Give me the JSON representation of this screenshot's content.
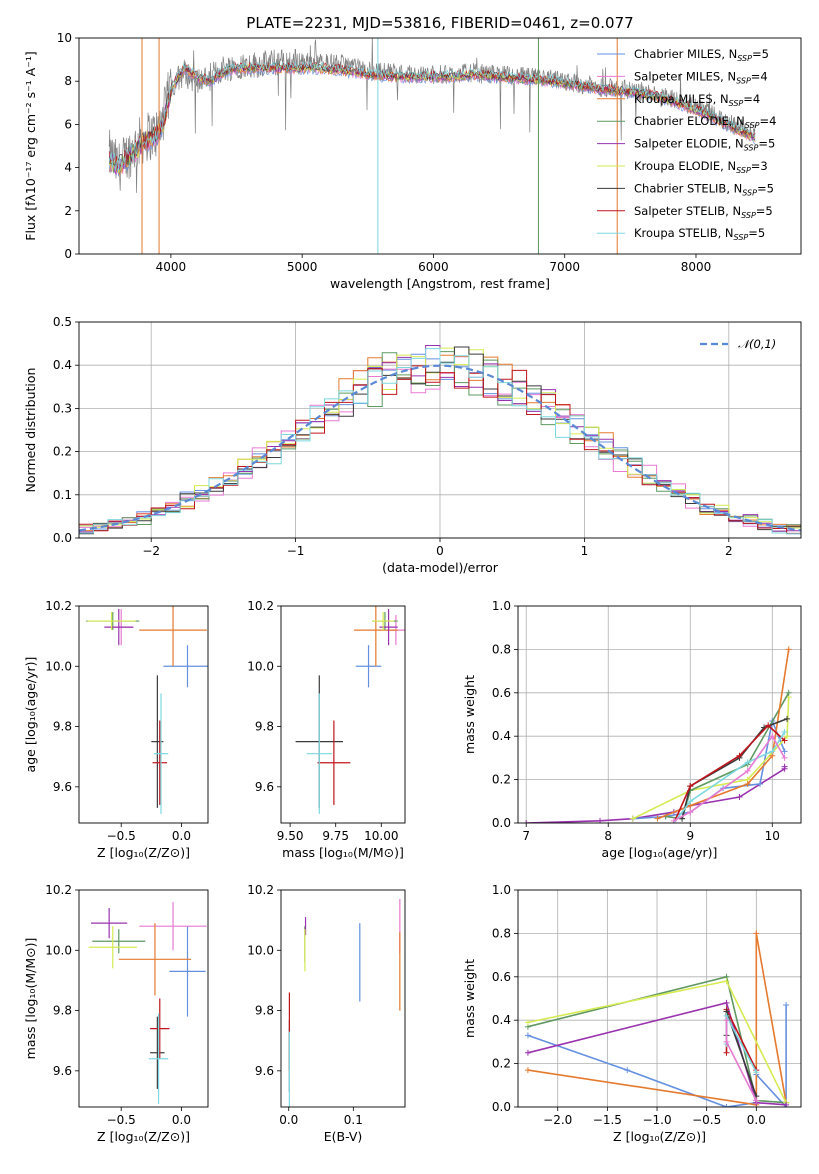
{
  "colors": {
    "chabrier_miles": "#6590e0",
    "salpeter_miles": "#e87ad2",
    "kroupa_miles": "#e57a2e",
    "chabrier_elodie": "#5f9860",
    "salpeter_elodie": "#9a32b0",
    "kroupa_elodie": "#d6ea52",
    "chabrier_stelib": "#3a3a3a",
    "salpeter_stelib": "#c0141c",
    "kroupa_stelib": "#7dd8e0"
  },
  "series_labels": [
    {
      "key": "chabrier_miles",
      "prefix": "Chabrier MILES, N",
      "sub": "SSP",
      "suffix": "=5"
    },
    {
      "key": "salpeter_miles",
      "prefix": "Salpeter MILES, N",
      "sub": "SSP",
      "suffix": "=4"
    },
    {
      "key": "kroupa_miles",
      "prefix": "Kroupa MILES, N",
      "sub": "SSP",
      "suffix": "=4"
    },
    {
      "key": "chabrier_elodie",
      "prefix": "Chabrier ELODIE, N",
      "sub": "SSP",
      "suffix": "=4"
    },
    {
      "key": "salpeter_elodie",
      "prefix": "Salpeter ELODIE, N",
      "sub": "SSP",
      "suffix": "=5"
    },
    {
      "key": "kroupa_elodie",
      "prefix": "Kroupa ELODIE, N",
      "sub": "SSP",
      "suffix": "=3"
    },
    {
      "key": "chabrier_stelib",
      "prefix": "Chabrier STELIB, N",
      "sub": "SSP",
      "suffix": "=5"
    },
    {
      "key": "salpeter_stelib",
      "prefix": "Salpeter STELIB, N",
      "sub": "SSP",
      "suffix": "=5"
    },
    {
      "key": "kroupa_stelib",
      "prefix": "Kroupa STELIB, N",
      "sub": "SSP",
      "suffix": "=5"
    }
  ],
  "chart_data": [
    {
      "id": "spectrum",
      "type": "line",
      "title": "PLATE=2231, MJD=53816, FIBERID=0461, z=0.077",
      "xlabel": "wavelength [Angstrom, rest frame]",
      "ylabel": "Flux [fλ10⁻¹⁷ erg cm⁻² s⁻¹ A⁻¹]",
      "xlim": [
        3300,
        8800
      ],
      "ylim": [
        0,
        10
      ],
      "xticks": [
        4000,
        5000,
        6000,
        7000,
        8000
      ],
      "yticks": [
        0,
        2,
        4,
        6,
        8,
        10
      ],
      "data_series": {
        "name": "data",
        "color": "#808080",
        "x": [
          3530,
          3600,
          3700,
          3800,
          3900,
          3950,
          4000,
          4100,
          4200,
          4300,
          4400,
          4500,
          4700,
          4900,
          5100,
          5300,
          5500,
          5700,
          5900,
          6100,
          6300,
          6500,
          6700,
          6900,
          7100,
          7300,
          7500,
          7700,
          7900,
          8100,
          8300,
          8450
        ],
        "y": [
          4.6,
          4.0,
          4.8,
          5.4,
          5.6,
          6.5,
          7.8,
          8.4,
          8.0,
          8.2,
          8.6,
          8.7,
          8.8,
          8.9,
          8.9,
          8.8,
          8.5,
          8.4,
          8.3,
          8.3,
          8.4,
          8.3,
          8.2,
          8.1,
          7.9,
          7.7,
          7.6,
          7.4,
          7.0,
          6.5,
          5.9,
          5.6
        ]
      },
      "model_series": {
        "name": "model",
        "x": [
          3530,
          3600,
          3700,
          3800,
          3900,
          3950,
          4000,
          4100,
          4200,
          4300,
          4400,
          4500,
          4700,
          4900,
          5100,
          5300,
          5500,
          5700,
          5900,
          6100,
          6300,
          6500,
          6700,
          6900,
          7100,
          7300,
          7500,
          7700,
          7900,
          8100,
          8300,
          8450
        ],
        "y": [
          4.3,
          4.0,
          4.6,
          5.2,
          5.5,
          6.2,
          7.6,
          8.6,
          8.2,
          8.0,
          8.4,
          8.6,
          8.6,
          8.6,
          8.6,
          8.5,
          8.3,
          8.2,
          8.2,
          8.2,
          8.3,
          8.2,
          8.1,
          8.0,
          7.8,
          7.6,
          7.5,
          7.3,
          6.9,
          6.4,
          5.8,
          5.4
        ]
      },
      "spikes": [
        {
          "x": 5577,
          "color": "#7dd8e0"
        },
        {
          "x": 6800,
          "color": "#5f9860"
        },
        {
          "x": 7400,
          "color": "#e57a2e"
        },
        {
          "x": 3780,
          "color": "#e57a2e"
        },
        {
          "x": 3910,
          "color": "#e57a2e"
        }
      ],
      "legend": "right"
    },
    {
      "id": "residuals",
      "type": "histogram",
      "xlabel": "(data-model)/error",
      "ylabel": "Normed distribution",
      "xlim": [
        -2.5,
        2.5
      ],
      "ylim": [
        0,
        0.5
      ],
      "xticks": [
        -2,
        -1,
        0,
        1,
        2
      ],
      "yticks": [
        0.0,
        0.1,
        0.2,
        0.3,
        0.4,
        0.5
      ],
      "bin_width": 0.1,
      "gaussian_label": "𝒩(0,1)",
      "gaussian_color": "#5a8ad6",
      "legend": "top-right",
      "grid": true
    },
    {
      "id": "age_vs_Z",
      "type": "scatter",
      "xlabel": "Z [log₁₀(Z/Z⊙)]",
      "ylabel": "age  [log₁₀(age/yr)]",
      "xlim": [
        -0.85,
        0.22
      ],
      "ylim": [
        9.48,
        10.2
      ],
      "xticks": [
        -0.5,
        0.0
      ],
      "yticks": [
        9.6,
        9.8,
        10.0,
        10.2
      ],
      "points": [
        {
          "key": "chabrier_miles",
          "x": 0.05,
          "y": 10.0,
          "xerr": 0.2,
          "yerr": 0.07
        },
        {
          "key": "salpeter_miles",
          "x": -0.5,
          "y": 10.13,
          "xerr": 0.1,
          "yerr": 0.06
        },
        {
          "key": "kroupa_miles",
          "x": -0.07,
          "y": 10.12,
          "xerr": 0.28,
          "yerr": 0.12
        },
        {
          "key": "chabrier_elodie",
          "x": -0.57,
          "y": 10.15,
          "xerr": 0.22,
          "yerr": 0.03
        },
        {
          "key": "salpeter_elodie",
          "x": -0.52,
          "y": 10.13,
          "xerr": 0.12,
          "yerr": 0.06
        },
        {
          "key": "kroupa_elodie",
          "x": -0.58,
          "y": 10.15,
          "xerr": 0.2,
          "yerr": 0.03
        },
        {
          "key": "chabrier_stelib",
          "x": -0.2,
          "y": 9.75,
          "xerr": 0.05,
          "yerr": 0.22
        },
        {
          "key": "salpeter_stelib",
          "x": -0.18,
          "y": 9.68,
          "xerr": 0.06,
          "yerr": 0.14
        },
        {
          "key": "kroupa_stelib",
          "x": -0.17,
          "y": 9.71,
          "xerr": 0.06,
          "yerr": 0.2
        }
      ]
    },
    {
      "id": "age_vs_mass",
      "type": "scatter",
      "xlabel": "mass [log₁₀(M/M⊙)]",
      "ylabel": "",
      "xlim": [
        9.45,
        10.13
      ],
      "ylim": [
        9.48,
        10.2
      ],
      "xticks": [
        9.5,
        9.75,
        10.0
      ],
      "xticklabels": [
        "9.50",
        "9.75",
        "10.00"
      ],
      "yticks": [
        9.6,
        9.8,
        10.0,
        10.2
      ],
      "points": [
        {
          "key": "chabrier_miles",
          "x": 9.93,
          "y": 10.0,
          "xerr": 0.07,
          "yerr": 0.07
        },
        {
          "key": "salpeter_miles",
          "x": 10.08,
          "y": 10.12,
          "xerr": 0.05,
          "yerr": 0.05
        },
        {
          "key": "kroupa_miles",
          "x": 9.97,
          "y": 10.12,
          "xerr": 0.12,
          "yerr": 0.12
        },
        {
          "key": "chabrier_elodie",
          "x": 10.02,
          "y": 10.15,
          "xerr": 0.07,
          "yerr": 0.03
        },
        {
          "key": "salpeter_elodie",
          "x": 10.04,
          "y": 10.13,
          "xerr": 0.05,
          "yerr": 0.06
        },
        {
          "key": "kroupa_elodie",
          "x": 10.01,
          "y": 10.15,
          "xerr": 0.06,
          "yerr": 0.03
        },
        {
          "key": "chabrier_stelib",
          "x": 9.66,
          "y": 9.75,
          "xerr": 0.13,
          "yerr": 0.22
        },
        {
          "key": "salpeter_stelib",
          "x": 9.74,
          "y": 9.68,
          "xerr": 0.09,
          "yerr": 0.14
        },
        {
          "key": "kroupa_stelib",
          "x": 9.66,
          "y": 9.71,
          "xerr": 0.07,
          "yerr": 0.2
        }
      ]
    },
    {
      "id": "weight_vs_age",
      "type": "line",
      "xlabel": "age  [log₁₀(age/yr)]",
      "ylabel": "mass weight",
      "xlim": [
        6.9,
        10.35
      ],
      "ylim": [
        0,
        1.0
      ],
      "xticks": [
        7,
        8,
        9,
        10
      ],
      "yticks": [
        0.0,
        0.2,
        0.4,
        0.6,
        0.8,
        1.0
      ],
      "grid": true,
      "series": [
        {
          "key": "salpeter_elodie",
          "x": [
            7.0,
            7.9,
            8.3,
            8.8,
            9.0,
            9.6,
            10.15,
            10.15
          ],
          "y": [
            0.0,
            0.01,
            0.02,
            0.05,
            0.08,
            0.12,
            0.25,
            0.26
          ]
        },
        {
          "key": "chabrier_miles",
          "x": [
            8.3,
            8.7,
            9.0,
            9.4,
            9.85,
            10.0,
            10.15
          ],
          "y": [
            0.02,
            0.03,
            0.05,
            0.16,
            0.18,
            0.47,
            0.33
          ]
        },
        {
          "key": "kroupa_elodie",
          "x": [
            8.3,
            9.0,
            9.7,
            10.18,
            10.2
          ],
          "y": [
            0.02,
            0.15,
            0.2,
            0.4,
            0.58
          ]
        },
        {
          "key": "chabrier_elodie",
          "x": [
            8.7,
            8.9,
            9.0,
            9.7,
            10.2
          ],
          "y": [
            0.03,
            0.02,
            0.15,
            0.27,
            0.6
          ]
        },
        {
          "key": "kroupa_miles",
          "x": [
            8.6,
            9.0,
            9.7,
            10.0,
            10.2
          ],
          "y": [
            0.02,
            0.08,
            0.18,
            0.31,
            0.8
          ]
        },
        {
          "key": "chabrier_stelib",
          "x": [
            8.9,
            9.0,
            9.6,
            9.9,
            10.18
          ],
          "y": [
            0.02,
            0.17,
            0.3,
            0.44,
            0.48
          ]
        },
        {
          "key": "salpeter_stelib",
          "x": [
            8.8,
            9.0,
            9.6,
            9.95,
            10.15
          ],
          "y": [
            0.0,
            0.17,
            0.31,
            0.45,
            0.38
          ]
        },
        {
          "key": "kroupa_stelib",
          "x": [
            8.8,
            9.0,
            9.7,
            10.0,
            10.15
          ],
          "y": [
            0.0,
            0.1,
            0.28,
            0.33,
            0.42
          ]
        },
        {
          "key": "salpeter_miles",
          "x": [
            8.8,
            9.0,
            9.7,
            10.0,
            10.15
          ],
          "y": [
            0.01,
            0.05,
            0.24,
            0.4,
            0.3
          ]
        }
      ]
    },
    {
      "id": "mass_vs_Z",
      "type": "scatter",
      "xlabel": "Z [log₁₀(Z/Z⊙)]",
      "ylabel": "mass [log₁₀(M/M⊙)]",
      "xlim": [
        -0.85,
        0.22
      ],
      "ylim": [
        9.48,
        10.2
      ],
      "xticks": [
        -0.5,
        0.0
      ],
      "yticks": [
        9.6,
        9.8,
        10.0,
        10.2
      ],
      "points": [
        {
          "key": "chabrier_miles",
          "x": 0.05,
          "y": 9.93,
          "xerr": 0.15,
          "yerr": 0.15
        },
        {
          "key": "salpeter_miles",
          "x": -0.07,
          "y": 10.08,
          "xerr": 0.28,
          "yerr": 0.08
        },
        {
          "key": "kroupa_miles",
          "x": -0.22,
          "y": 9.97,
          "xerr": 0.3,
          "yerr": 0.12
        },
        {
          "key": "chabrier_elodie",
          "x": -0.52,
          "y": 10.03,
          "xerr": 0.22,
          "yerr": 0.04
        },
        {
          "key": "salpeter_elodie",
          "x": -0.6,
          "y": 10.09,
          "xerr": 0.15,
          "yerr": 0.05
        },
        {
          "key": "kroupa_elodie",
          "x": -0.57,
          "y": 10.01,
          "xerr": 0.2,
          "yerr": 0.07
        },
        {
          "key": "chabrier_stelib",
          "x": -0.2,
          "y": 9.66,
          "xerr": 0.06,
          "yerr": 0.12
        },
        {
          "key": "salpeter_stelib",
          "x": -0.18,
          "y": 9.74,
          "xerr": 0.08,
          "yerr": 0.1
        },
        {
          "key": "kroupa_stelib",
          "x": -0.19,
          "y": 9.64,
          "xerr": 0.08,
          "yerr": 0.15
        }
      ]
    },
    {
      "id": "mass_vs_EBV",
      "type": "scatter",
      "xlabel": "E(B-V)",
      "ylabel": "",
      "xlim": [
        -0.012,
        0.18
      ],
      "ylim": [
        9.48,
        10.2
      ],
      "xticks": [
        0.0,
        0.1
      ],
      "yticks": [
        9.6,
        9.8,
        10.0,
        10.2
      ],
      "points": [
        {
          "key": "chabrier_miles",
          "x": 0.11,
          "y": 9.96,
          "xerr": 0,
          "yerr": 0.13
        },
        {
          "key": "salpeter_miles",
          "x": 0.172,
          "y": 10.08,
          "xerr": 0,
          "yerr": 0.09
        },
        {
          "key": "kroupa_miles",
          "x": 0.172,
          "y": 9.93,
          "xerr": 0,
          "yerr": 0.13
        },
        {
          "key": "chabrier_elodie",
          "x": 0.025,
          "y": 10.02,
          "xerr": 0,
          "yerr": 0.06
        },
        {
          "key": "salpeter_elodie",
          "x": 0.026,
          "y": 10.08,
          "xerr": 0,
          "yerr": 0.03
        },
        {
          "key": "kroupa_elodie",
          "x": 0.025,
          "y": 10.0,
          "xerr": 0,
          "yerr": 0.07
        },
        {
          "key": "chabrier_stelib",
          "x": 0.001,
          "y": 9.65,
          "xerr": 0,
          "yerr": 0.12
        },
        {
          "key": "salpeter_stelib",
          "x": 0.001,
          "y": 9.73,
          "xerr": 0,
          "yerr": 0.13
        },
        {
          "key": "kroupa_stelib",
          "x": 0.001,
          "y": 9.6,
          "xerr": 0,
          "yerr": 0.13
        }
      ]
    },
    {
      "id": "weight_vs_Z",
      "type": "line",
      "xlabel": "Z [log₁₀(Z/Z⊙)]",
      "ylabel": "mass weight",
      "xlim": [
        -2.4,
        0.45
      ],
      "ylim": [
        0,
        1.0
      ],
      "xticks": [
        -2.0,
        -1.5,
        -1.0,
        -0.5,
        0.0
      ],
      "yticks": [
        0.0,
        0.2,
        0.4,
        0.6,
        0.8,
        1.0
      ],
      "grid": true,
      "series": [
        {
          "key": "chabrier_miles",
          "x": [
            -2.3,
            -1.3,
            -0.3,
            0.0,
            0.0,
            0.3,
            0.3
          ],
          "y": [
            0.33,
            0.17,
            0.0,
            0.02,
            0.15,
            0.0,
            0.47
          ]
        },
        {
          "key": "kroupa_miles",
          "x": [
            -2.3,
            0.0,
            0.0,
            0.3
          ],
          "y": [
            0.17,
            0.01,
            0.8,
            0.02
          ]
        },
        {
          "key": "chabrier_elodie",
          "x": [
            -2.3,
            -0.3,
            0.0,
            0.3
          ],
          "y": [
            0.37,
            0.6,
            0.03,
            0.02
          ]
        },
        {
          "key": "kroupa_elodie",
          "x": [
            -2.3,
            -0.3,
            0.3
          ],
          "y": [
            0.39,
            0.58,
            0.02
          ]
        },
        {
          "key": "salpeter_elodie",
          "x": [
            -2.3,
            -0.3,
            0.0,
            0.3
          ],
          "y": [
            0.25,
            0.48,
            0.02,
            0.01
          ]
        },
        {
          "key": "salpeter_stelib",
          "x": [
            -0.3,
            -0.3,
            0.0
          ],
          "y": [
            0.25,
            0.45,
            0.17
          ]
        },
        {
          "key": "chabrier_stelib",
          "x": [
            -0.3,
            -0.3,
            0.0
          ],
          "y": [
            0.33,
            0.44,
            0.05
          ]
        },
        {
          "key": "kroupa_stelib",
          "x": [
            -0.3,
            -0.3,
            0.0
          ],
          "y": [
            0.29,
            0.42,
            0.16
          ]
        },
        {
          "key": "salpeter_miles",
          "x": [
            -0.3,
            -0.3,
            0.0
          ],
          "y": [
            0.4,
            0.3,
            0.03
          ]
        }
      ]
    }
  ]
}
